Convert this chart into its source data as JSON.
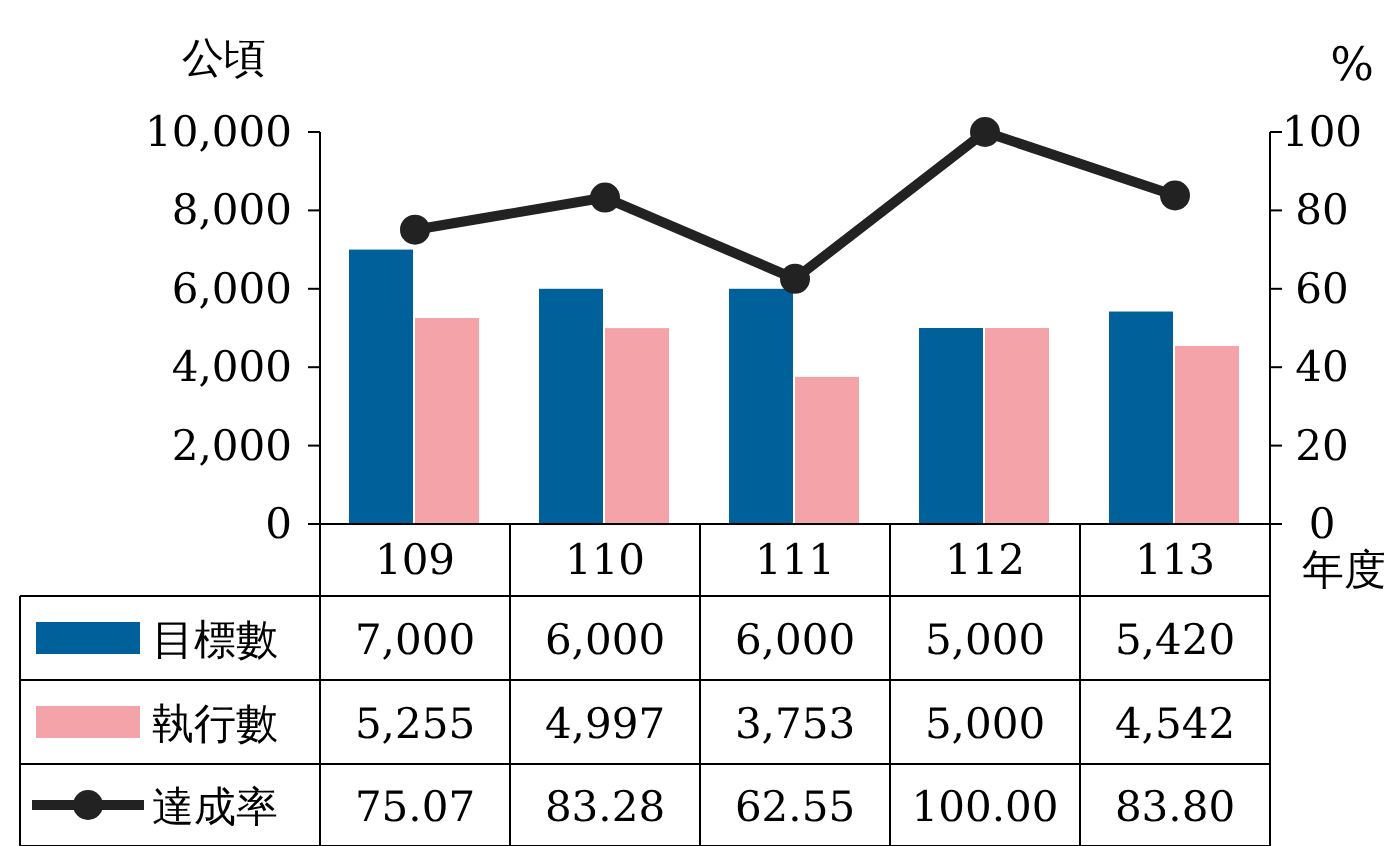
{
  "chart_data": {
    "type": "bar",
    "ylabel": "公頃",
    "y2label": "%",
    "xlabel": "年度",
    "categories": [
      "109",
      "110",
      "111",
      "112",
      "113"
    ],
    "ylim": [
      0,
      10000
    ],
    "yticks": [
      {
        "value": 0,
        "label": "0"
      },
      {
        "value": 2000,
        "label": "2,000"
      },
      {
        "value": 4000,
        "label": "4,000"
      },
      {
        "value": 6000,
        "label": "6,000"
      },
      {
        "value": 8000,
        "label": "8,000"
      },
      {
        "value": 10000,
        "label": "10,000"
      }
    ],
    "y2lim": [
      0,
      100
    ],
    "y2ticks": [
      0,
      20,
      40,
      60,
      80,
      100
    ],
    "legend": "bottom left",
    "grid": false,
    "series": [
      {
        "name": "目標數",
        "color": "#00609a",
        "values": [
          7000,
          6000,
          6000,
          5000,
          5420
        ],
        "value_labels": [
          "7,000",
          "6,000",
          "6,000",
          "5,000",
          "5,420"
        ]
      },
      {
        "name": "執行數",
        "color": "#f4a3a8",
        "values": [
          5255,
          4997,
          3753,
          5000,
          4542
        ],
        "value_labels": [
          "5,255",
          "4,997",
          "3,753",
          "5,000",
          "4,542"
        ]
      },
      {
        "name": "達成率",
        "type": "line",
        "axis": "y2",
        "color": "#222222",
        "marker": "circle",
        "values": [
          75.07,
          83.28,
          62.55,
          100.0,
          83.8
        ],
        "value_labels": [
          "75.07",
          "83.28",
          "62.55",
          "100.00",
          "83.80"
        ]
      }
    ]
  }
}
